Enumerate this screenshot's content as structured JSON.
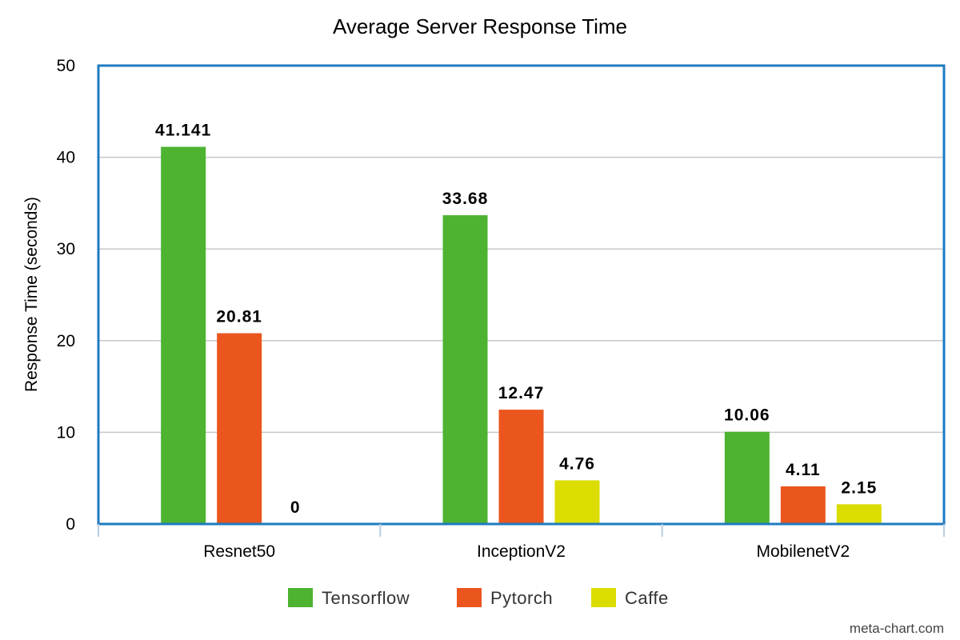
{
  "chart_data": {
    "type": "bar",
    "title": "Average Server Response Time",
    "xlabel": "",
    "ylabel": "Response Time (seconds)",
    "ylim": [
      0,
      50
    ],
    "yticks": [
      "0",
      "10",
      "20",
      "30",
      "40",
      "50"
    ],
    "categories": [
      "Resnet50",
      "InceptionV2",
      "MobilenetV2"
    ],
    "series": [
      {
        "name": "Tensorflow",
        "color": "#4db331",
        "values": [
          41.141,
          33.68,
          10.06
        ],
        "labels": [
          "41.141",
          "33.68",
          "10.06"
        ]
      },
      {
        "name": "Pytorch",
        "color": "#eb561f",
        "values": [
          20.81,
          12.47,
          4.11
        ],
        "labels": [
          "20.81",
          "12.47",
          "4.11"
        ]
      },
      {
        "name": "Caffe",
        "color": "#dbdc00",
        "values": [
          0,
          4.76,
          2.15
        ],
        "labels": [
          "0",
          "4.76",
          "2.15"
        ]
      }
    ],
    "grid": true,
    "legend_position": "bottom",
    "frame_color": "#1f7bbf",
    "gridline_color": "#c8c8c8"
  },
  "credit": "meta-chart.com"
}
